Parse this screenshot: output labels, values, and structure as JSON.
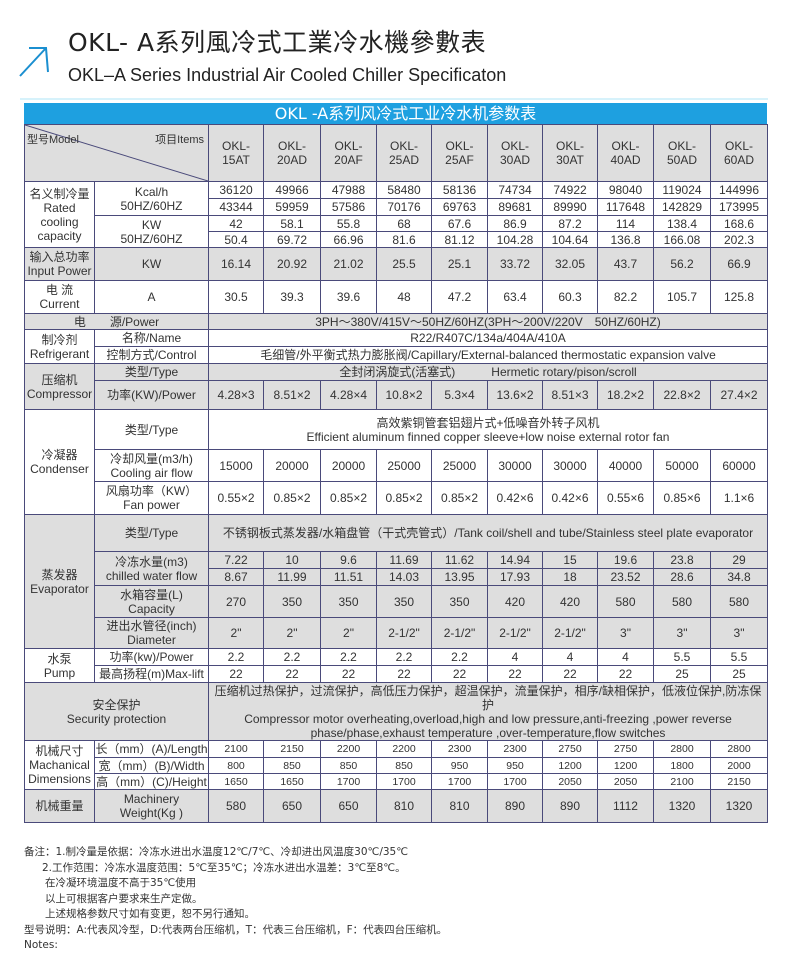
{
  "title": {
    "zh": "OKL- A系列風冷式工業冷水機參數表",
    "en": "OKL–A Series Industrial Air Cooled Chiller Specificaton",
    "accent_color": "#1ea0e0",
    "icon": "arrow-up-right-icon"
  },
  "table": {
    "banner": "OKL -A系列风冷式工业冷水机参数表",
    "header": {
      "model_label": "型号Model",
      "items_label": "项目Items",
      "models": [
        "OKL-\n15AT",
        "OKL-\n20AD",
        "OKL-\n20AF",
        "OKL-\n25AD",
        "OKL-\n25AF",
        "OKL-\n30AD",
        "OKL-\n30AT",
        "OKL-\n40AD",
        "OKL-\n50AD",
        "OKL-\n60AD"
      ]
    },
    "rows": [
      {
        "h": 17,
        "c": [
          {
            "t": "名义制冷量\nRated\ncooling\ncapacity",
            "rs": 4
          },
          {
            "t": "Kcal/h\n50HZ/60HZ",
            "rs": 2
          },
          "36120",
          "49966",
          "47988",
          "58480",
          "58136",
          "74734",
          "74922",
          "98040",
          "119024",
          "144996"
        ]
      },
      {
        "h": 17,
        "c": [
          "43344",
          "59959",
          "57586",
          "70176",
          "69763",
          "89681",
          "89990",
          "117648",
          "142829",
          "173995"
        ]
      },
      {
        "h": 16,
        "c": [
          {
            "t": "KW\n50HZ/60HZ",
            "rs": 2
          },
          "42",
          "58.1",
          "55.8",
          "68",
          "67.6",
          "86.9",
          "87.2",
          "114",
          "138.4",
          "168.6"
        ]
      },
      {
        "h": 16,
        "c": [
          "50.4",
          "69.72",
          "66.96",
          "81.6",
          "81.12",
          "104.28",
          "104.64",
          "136.8",
          "166.08",
          "202.3"
        ]
      },
      {
        "h": 33,
        "g": true,
        "c": [
          "输入总功率\nInput Power",
          "KW",
          "16.14",
          "20.92",
          "21.02",
          "25.5",
          "25.1",
          "33.72",
          "32.05",
          "43.7",
          "56.2",
          "66.9"
        ]
      },
      {
        "h": 33,
        "c": [
          "电  流\nCurrent",
          "A",
          "30.5",
          "39.3",
          "39.6",
          "48",
          "47.2",
          "63.4",
          "60.3",
          "82.2",
          "105.7",
          "125.8"
        ]
      },
      {
        "h": 16,
        "g": true,
        "c": [
          {
            "t": "电　　源/Power",
            "cs": 2
          },
          {
            "t": "3PH～380V/415V～50HZ/60HZ(3PH～200V/220V　50HZ/60HZ)",
            "cs": 10
          }
        ]
      },
      {
        "h": 17,
        "c": [
          {
            "t": "制冷剂\nRefrigerant",
            "rs": 2
          },
          "名称/Name",
          {
            "t": "R22/R407C/134a/404A/410A",
            "cs": 10
          }
        ]
      },
      {
        "h": 17,
        "c": [
          "控制方式/Control",
          {
            "t": "毛细管/外平衡式热力膨胀阀/Capillary/External-balanced thermostatic expansion valve",
            "cs": 10
          }
        ]
      },
      {
        "h": 17,
        "g": true,
        "c": [
          {
            "t": "压缩机\nCompressor",
            "rs": 2
          },
          "类型/Type",
          {
            "t": "全封闭涡旋式(活塞式)　　　Hermetic rotary/pison/scroll",
            "cs": 10
          }
        ]
      },
      {
        "h": 29,
        "g": true,
        "c": [
          "功率(KW)/Power",
          "4.28×3",
          "8.51×2",
          "4.28×4",
          "10.8×2",
          "5.3×4",
          "13.6×2",
          "8.51×3",
          "18.2×2",
          "22.8×2",
          "27.4×2"
        ]
      },
      {
        "h": 40,
        "c": [
          {
            "t": "冷凝器\nCondenser",
            "rs": 3
          },
          "类型/Type",
          {
            "t": "高效紫铜管套铝翅片式+低噪音外转子风机\nEfficient aluminum finned copper sleeve+low noise external rotor fan",
            "cs": 10
          }
        ]
      },
      {
        "h": 32,
        "c": [
          "冷却风量(m3/h)\nCooling air flow",
          "15000",
          "20000",
          "20000",
          "25000",
          "25000",
          "30000",
          "30000",
          "40000",
          "50000",
          "60000"
        ]
      },
      {
        "h": 33,
        "c": [
          "风扇功率（KW）\nFan power",
          "0.55×2",
          "0.85×2",
          "0.85×2",
          "0.85×2",
          "0.85×2",
          "0.42×6",
          "0.42×6",
          "0.55×6",
          "0.85×6",
          "1.1×6"
        ]
      },
      {
        "h": 37,
        "g": true,
        "c": [
          {
            "t": "蒸发器\nEvaporator",
            "rs": 5
          },
          "类型/Type",
          {
            "t": "不锈钢板式蒸发器/水箱盘管（干式壳管式）/Tank coil/shell and tube/Stainless steel plate evaporator",
            "cs": 10
          }
        ]
      },
      {
        "h": 17,
        "g": true,
        "c": [
          {
            "t": "冷冻水量(m3)\nchilled water flow",
            "rs": 2
          },
          "7.22",
          "10",
          "9.6",
          "11.69",
          "11.62",
          "14.94",
          "15",
          "19.6",
          "23.8",
          "29"
        ]
      },
      {
        "h": 17,
        "g": true,
        "c": [
          "8.67",
          "11.99",
          "11.51",
          "14.03",
          "13.95",
          "17.93",
          "18",
          "23.52",
          "28.6",
          "34.8"
        ]
      },
      {
        "h": 32,
        "g": true,
        "c": [
          "水箱容量(L)\nCapacity",
          "270",
          "350",
          "350",
          "350",
          "350",
          "420",
          "420",
          "580",
          "580",
          "580"
        ]
      },
      {
        "h": 31,
        "g": true,
        "c": [
          "进出水管径(inch)\nDiameter",
          "2\"",
          "2\"",
          "2\"",
          "2-1/2\"",
          "2-1/2\"",
          "2-1/2\"",
          "2-1/2\"",
          "3\"",
          "3\"",
          "3\""
        ]
      },
      {
        "h": 17,
        "c": [
          {
            "t": "水泵\nPump",
            "rs": 2
          },
          "功率(kw)/Power",
          "2.2",
          "2.2",
          "2.2",
          "2.2",
          "2.2",
          "4",
          "4",
          "4",
          "5.5",
          "5.5"
        ]
      },
      {
        "h": 17,
        "c": [
          "最高扬程(m)Max-lift",
          "22",
          "22",
          "22",
          "22",
          "22",
          "22",
          "22",
          "22",
          "25",
          "25"
        ]
      },
      {
        "h": 58,
        "g": true,
        "c": [
          {
            "t": "安全保护\nSecurity protection",
            "cs": 2
          },
          {
            "t": "压缩机过热保护，过流保护，高低压力保护，超温保护，流量保护，相序/缺相保护，低液位保护,防冻保护\nCompressor motor overheating,overload,high and low pressure,anti-freezing ,power reverse\nphase/phase,exhaust temperature ,over-temperature,flow switches",
            "cs": 10
          }
        ]
      },
      {
        "h": 17,
        "s": true,
        "c": [
          {
            "t": "机械尺寸\nMachanical\nDimensions",
            "rs": 3
          },
          "长（mm）(A)/Length",
          "2100",
          "2150",
          "2200",
          "2200",
          "2300",
          "2300",
          "2750",
          "2750",
          "2800",
          "2800"
        ]
      },
      {
        "h": 16,
        "s": true,
        "c": [
          "宽（mm）(B)/Width",
          "800",
          "850",
          "850",
          "850",
          "950",
          "950",
          "1200",
          "1200",
          "1800",
          "2000"
        ]
      },
      {
        "h": 16,
        "s": true,
        "c": [
          "高（mm）(C)/Height",
          "1650",
          "1650",
          "1700",
          "1700",
          "1700",
          "1700",
          "2050",
          "2050",
          "2100",
          "2150"
        ]
      },
      {
        "h": 33,
        "g": true,
        "c": [
          "机械重量",
          "Machinery\nWeight(Kg )",
          "580",
          "650",
          "650",
          "810",
          "810",
          "890",
          "890",
          "1112",
          "1320",
          "1320"
        ]
      }
    ]
  },
  "notes": {
    "line1": "备注：1.制冷量是依据：冷冻水进出水温度12℃/7℃、冷却进出风温度30℃/35℃",
    "line2": "2.工作范围：冷冻水温度范围：5℃至35℃；冷冻水进出水温差：3℃至8℃。",
    "line3": "在冷凝环境温度不高于35℃使用",
    "line4": "以上可根据客户要求来生产定做。",
    "line5": "上述规格参数尺寸如有变更，恕不另行通知。",
    "line6": "型号说明：A:代表风冷型，D:代表两台压缩机，T：代表三台压缩机，F：代表四台压缩机。",
    "line7": "Notes:"
  }
}
